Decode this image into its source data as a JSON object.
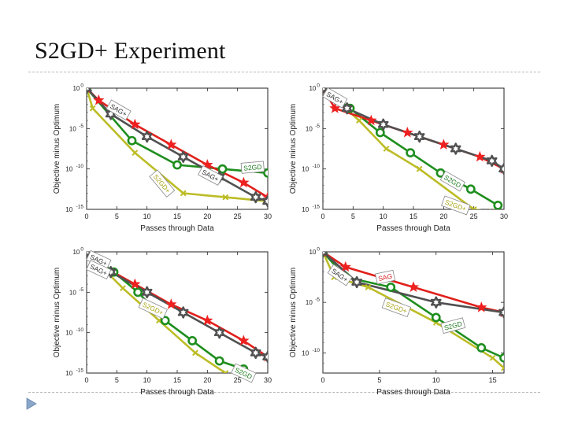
{
  "slide": {
    "title": "S2GD+ Experiment"
  },
  "colors": {
    "sag": "#e0201b",
    "sagplus": "#505050",
    "s2gd": "#1e8e1e",
    "s2gdplus": "#bcbc26",
    "star": "#ee2020"
  },
  "chart_data": [
    {
      "type": "line",
      "ylog": true,
      "xlabel": "Passes through Data",
      "ylabel": "Objective minus Optimum",
      "xlim": [
        0,
        30
      ],
      "xticks": [
        0,
        5,
        10,
        15,
        20,
        25,
        30
      ],
      "ylim": [
        -15,
        0
      ],
      "yticks": [
        {
          "exp": 0,
          "label": "10"
        },
        {
          "exp": -5,
          "label": "10"
        },
        {
          "exp": -10,
          "label": "10"
        },
        {
          "exp": -15,
          "label": "10"
        }
      ],
      "yticks_exp": [
        "0",
        "-5",
        "-10",
        "-15"
      ],
      "series": [
        {
          "name": "SAG",
          "color_key": "sag",
          "marker": "star",
          "x": [
            0,
            2,
            8,
            14,
            20,
            26,
            30
          ],
          "y": [
            0,
            -1.5,
            -4.5,
            -7.0,
            -9.5,
            -11.7,
            -13.5
          ]
        },
        {
          "name": "SAG+",
          "color_key": "sagplus",
          "marker": "hexstar",
          "x": [
            0,
            4,
            10,
            16,
            22,
            28,
            30
          ],
          "y": [
            0,
            -3.2,
            -6.0,
            -8.5,
            -11.0,
            -13.5,
            -14.0
          ]
        },
        {
          "name": "S2GD",
          "color_key": "s2gd",
          "marker": "circle",
          "x": [
            0,
            7.5,
            15,
            22.5,
            30
          ],
          "y": [
            0,
            -6.5,
            -9.5,
            -10.0,
            -10.5
          ]
        },
        {
          "name": "S2GD+",
          "color_key": "s2gdplus",
          "marker": "x",
          "x": [
            0,
            1,
            8,
            16,
            23,
            30
          ],
          "y": [
            0,
            -2.5,
            -8.0,
            -13.0,
            -13.5,
            -14.0
          ]
        }
      ],
      "labels": [
        {
          "text": "SAG+",
          "x": 5.3,
          "y": -2.7,
          "angle": 30
        },
        {
          "text": "S2GD",
          "x": 27.5,
          "y": -9.8,
          "angle": -5
        },
        {
          "text": "SAG+",
          "x": 20.5,
          "y": -10.8,
          "angle": 28
        },
        {
          "text": "S2GD+",
          "x": 12.5,
          "y": -11.8,
          "angle": 50
        }
      ]
    },
    {
      "type": "line",
      "ylog": true,
      "xlabel": "Passes through Data",
      "ylabel": "Objective minus Optimum",
      "xlim": [
        0,
        30
      ],
      "xticks": [
        0,
        5,
        10,
        15,
        20,
        25,
        30
      ],
      "ylim": [
        -15,
        0
      ],
      "yticks": [
        {
          "exp": 0,
          "label": "10"
        },
        {
          "exp": -5,
          "label": "10"
        },
        {
          "exp": -10,
          "label": "10"
        },
        {
          "exp": -15,
          "label": "10"
        }
      ],
      "yticks_exp": [
        "0",
        "-5",
        "-10",
        "-15"
      ],
      "series": [
        {
          "name": "SAG",
          "color_key": "sag",
          "marker": "star",
          "x": [
            0,
            2,
            8,
            14,
            20,
            26,
            30
          ],
          "y": [
            0,
            -2.5,
            -4.0,
            -5.5,
            -7.0,
            -8.5,
            -10.0
          ]
        },
        {
          "name": "SAG+",
          "color_key": "sagplus",
          "marker": "hexstar",
          "x": [
            0,
            4,
            10,
            16,
            22,
            28,
            30
          ],
          "y": [
            0,
            -2.5,
            -4.5,
            -6.0,
            -7.5,
            -9.0,
            -10.0
          ]
        },
        {
          "name": "S2GD",
          "color_key": "s2gd",
          "marker": "circle",
          "x": [
            0,
            4.5,
            9.5,
            14.5,
            19.5,
            24.5,
            29
          ],
          "y": [
            0,
            -2.5,
            -5.5,
            -8.0,
            -10.5,
            -12.5,
            -14.5
          ]
        },
        {
          "name": "S2GD+",
          "color_key": "s2gdplus",
          "marker": "x",
          "x": [
            0,
            6,
            10.5,
            16,
            25,
            28
          ],
          "y": [
            0,
            -4.0,
            -7.5,
            -10.0,
            -15.0,
            -15.3
          ]
        }
      ],
      "labels": [
        {
          "text": "SAG+",
          "x": 2.0,
          "y": -1.2,
          "angle": 30
        },
        {
          "text": "S2GD",
          "x": 21.5,
          "y": -11.5,
          "angle": 30
        },
        {
          "text": "S2GD+",
          "x": 22.0,
          "y": -14.5,
          "angle": 20
        }
      ]
    },
    {
      "type": "line",
      "ylog": true,
      "xlabel": "Passes through Data",
      "ylabel": "Objective minus Optimum",
      "xlim": [
        0,
        30
      ],
      "xticks": [
        0,
        5,
        10,
        15,
        20,
        25,
        30
      ],
      "ylim": [
        -15,
        0
      ],
      "yticks": [
        {
          "exp": 0,
          "label": "10"
        },
        {
          "exp": -5,
          "label": "10"
        },
        {
          "exp": -10,
          "label": "10"
        },
        {
          "exp": -15,
          "label": "10"
        }
      ],
      "yticks_exp": [
        "0",
        "-5",
        "-10",
        "-15"
      ],
      "series": [
        {
          "name": "SAG",
          "color_key": "sag",
          "marker": "star",
          "x": [
            0,
            2,
            8,
            14,
            20,
            26,
            30
          ],
          "y": [
            0,
            -1.5,
            -4.0,
            -6.5,
            -8.5,
            -11.0,
            -13.0
          ]
        },
        {
          "name": "SAG+",
          "color_key": "sagplus",
          "marker": "hexstar",
          "x": [
            0,
            4,
            10,
            16,
            22,
            28,
            30
          ],
          "y": [
            0,
            -2.5,
            -5.0,
            -7.5,
            -10.0,
            -12.5,
            -13.0
          ]
        },
        {
          "name": "S2GD",
          "color_key": "s2gd",
          "marker": "circle",
          "x": [
            0,
            4.5,
            8.5,
            13,
            17.5,
            22,
            26
          ],
          "y": [
            0,
            -2.5,
            -5.0,
            -8.5,
            -11.0,
            -13.5,
            -14.5
          ]
        },
        {
          "name": "S2GD+",
          "color_key": "s2gdplus",
          "marker": "x",
          "x": [
            0,
            6,
            12,
            18,
            23
          ],
          "y": [
            0,
            -4.5,
            -8.5,
            -12.5,
            -15.0
          ]
        }
      ],
      "labels": [
        {
          "text": "SAG+",
          "x": 2.0,
          "y": -1.0,
          "angle": 25
        },
        {
          "text": "SAG+",
          "x": 2.0,
          "y": -2.2,
          "angle": 25
        },
        {
          "text": "S2GD+",
          "x": 11.0,
          "y": -7.0,
          "angle": 25
        },
        {
          "text": "S2GD",
          "x": 26.0,
          "y": -15.0,
          "angle": 25
        }
      ]
    },
    {
      "type": "line",
      "ylog": true,
      "xlabel": "Passes through Data",
      "ylabel": "Objective minus Optimum",
      "xlim": [
        0,
        16
      ],
      "xticks": [
        0,
        5,
        10,
        15
      ],
      "ylim": [
        -12,
        0
      ],
      "yticks": [
        {
          "exp": 0,
          "label": "10"
        },
        {
          "exp": -5,
          "label": "10"
        },
        {
          "exp": -10,
          "label": "10"
        }
      ],
      "yticks_exp": [
        "0",
        "-5",
        "-10"
      ],
      "series": [
        {
          "name": "SAG",
          "color_key": "sag",
          "marker": "star",
          "x": [
            0,
            2,
            8,
            14,
            16
          ],
          "y": [
            0,
            -1.5,
            -3.5,
            -5.5,
            -6.0
          ]
        },
        {
          "name": "SAG+",
          "color_key": "sagplus",
          "marker": "hexstar",
          "x": [
            0,
            3,
            10,
            16
          ],
          "y": [
            0,
            -3.0,
            -5.0,
            -6.0
          ]
        },
        {
          "name": "S2GD",
          "color_key": "s2gd",
          "marker": "circle",
          "x": [
            0,
            2,
            6,
            10,
            14,
            16
          ],
          "y": [
            0,
            -2.5,
            -3.5,
            -6.5,
            -9.5,
            -10.5
          ]
        },
        {
          "name": "S2GD+",
          "color_key": "s2gdplus",
          "marker": "x",
          "x": [
            0,
            1,
            4,
            10,
            15,
            16
          ],
          "y": [
            0,
            -2.5,
            -3.5,
            -7.0,
            -10.5,
            -11.5
          ]
        }
      ],
      "labels": [
        {
          "text": "SAG+",
          "x": 1.5,
          "y": -2.3,
          "angle": 35
        },
        {
          "text": "SAG",
          "x": 5.5,
          "y": -2.5,
          "angle": -12
        },
        {
          "text": "S2GD+",
          "x": 6.5,
          "y": -5.5,
          "angle": 20
        },
        {
          "text": "S2GD",
          "x": 11.5,
          "y": -7.3,
          "angle": -15
        }
      ]
    }
  ]
}
